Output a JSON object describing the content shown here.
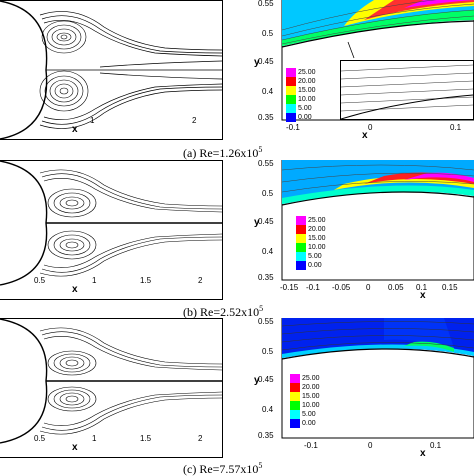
{
  "captions": {
    "a_prefix": "(a) Re=1.26x10",
    "a_exp": "5",
    "b_prefix": "(b) Re=2.52x10",
    "b_exp": "5",
    "c_prefix": "(c) Re=7.57x10",
    "c_exp": "5"
  },
  "left_axes": {
    "xlabel": "x",
    "a_ticks": [
      "1",
      "2"
    ],
    "b_ticks": [
      "0.5",
      "1",
      "1.5",
      "2"
    ],
    "c_ticks": [
      "0.5",
      "1",
      "1.5",
      "2"
    ]
  },
  "right_axes": {
    "xlabel": "x",
    "ylabel": "y",
    "a_yticks": [
      "0.55",
      "0.5",
      "0.45",
      "0.4",
      "0.35"
    ],
    "a_xticks": [
      "-0.1",
      "0",
      "0.1"
    ],
    "b_yticks": [
      "0.55",
      "0.5",
      "0.45",
      "0.4",
      "0.35"
    ],
    "b_xticks": [
      "-0.15",
      "-0.1",
      "-0.05",
      "0",
      "0.05",
      "0.1",
      "0.15"
    ],
    "c_yticks": [
      "0.55",
      "0.5",
      "0.45",
      "0.4",
      "0.35"
    ],
    "c_xticks": [
      "-0.1",
      "0",
      "0.1"
    ]
  },
  "legend": {
    "levels": [
      "25.00",
      "20.00",
      "15.00",
      "10.00",
      "5.00",
      "0.00"
    ],
    "colors": [
      "#ff00ff",
      "#ff0000",
      "#ffff00",
      "#00ff00",
      "#00ffff",
      "#0000ff"
    ]
  }
}
